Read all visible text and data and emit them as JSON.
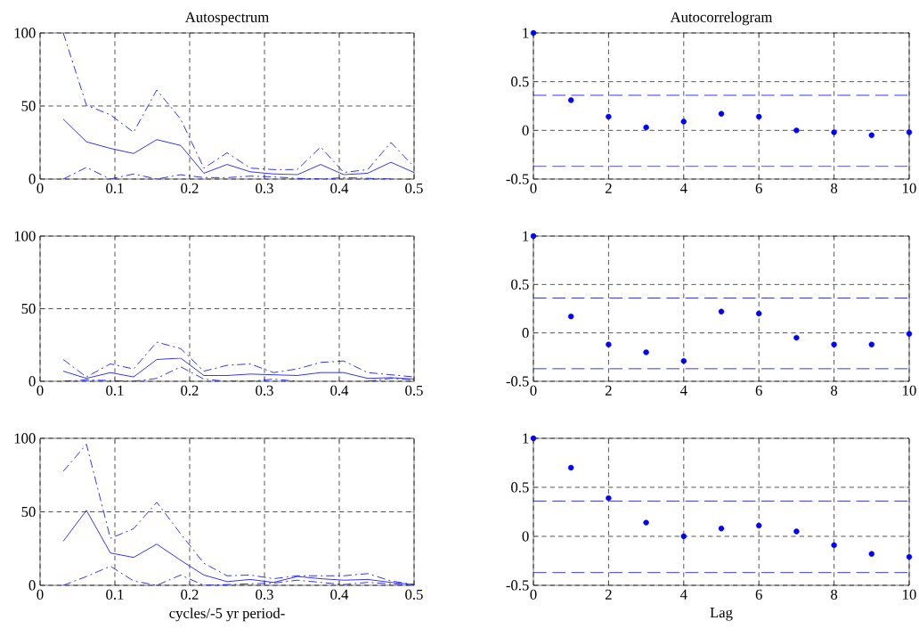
{
  "chart_data": [
    {
      "type": "line",
      "title": "Autospectrum",
      "x": [
        0.031,
        0.062,
        0.094,
        0.125,
        0.156,
        0.188,
        0.219,
        0.25,
        0.281,
        0.312,
        0.344,
        0.375,
        0.406,
        0.438,
        0.469,
        0.5
      ],
      "xlim": [
        0,
        0.5
      ],
      "ylim": [
        0,
        100
      ],
      "xticks": [
        0,
        0.1,
        0.2,
        0.3,
        0.4,
        0.5
      ],
      "yticks": [
        0,
        50,
        100
      ],
      "grid": true,
      "series": [
        {
          "color": "#0000ff",
          "line_style": "solid",
          "values": [
            41,
            25.5,
            21,
            17.5,
            27,
            23,
            4,
            10,
            5,
            3.5,
            3,
            10,
            3,
            4,
            11.5,
            4.5
          ]
        },
        {
          "color": "#0000ff",
          "line_style": "dashed",
          "values": [
            100,
            50.5,
            44,
            32,
            61,
            41,
            7.5,
            18,
            7.5,
            6.5,
            6.5,
            22,
            4.5,
            6.5,
            25,
            8.5
          ]
        },
        {
          "color": "#0000ff",
          "line_style": "dashed",
          "values": [
            0,
            8,
            0,
            3.5,
            0,
            3,
            1,
            1,
            2,
            1.5,
            0.5,
            0,
            1,
            0.5,
            0,
            null
          ]
        }
      ]
    },
    {
      "type": "scatter",
      "title": "Autocorrelogram",
      "x": [
        0,
        1,
        2,
        3,
        4,
        5,
        6,
        7,
        8,
        9,
        10
      ],
      "xlim": [
        0,
        10
      ],
      "ylim": [
        -0.5,
        1
      ],
      "xticks": [
        0,
        2,
        4,
        6,
        8,
        10
      ],
      "yticks": [
        -0.5,
        0,
        0.5,
        1
      ],
      "grid": true,
      "marker": "circle",
      "series": [
        {
          "color": "#0000ff",
          "values": [
            1,
            0.31,
            0.14,
            0.03,
            0.09,
            0.17,
            0.14,
            0.0,
            -0.02,
            -0.05,
            -0.02
          ]
        }
      ],
      "ref_lines": [
        {
          "axis": "y",
          "value": 0.36,
          "color": "#0000ff",
          "line_style": "dashed"
        },
        {
          "axis": "y",
          "value": -0.37,
          "color": "#0000ff",
          "line_style": "dashed"
        }
      ]
    },
    {
      "type": "line",
      "x": [
        0.031,
        0.062,
        0.094,
        0.125,
        0.156,
        0.188,
        0.219,
        0.25,
        0.281,
        0.312,
        0.344,
        0.375,
        0.406,
        0.438,
        0.469,
        0.5
      ],
      "xlim": [
        0,
        0.5
      ],
      "ylim": [
        0,
        100
      ],
      "xticks": [
        0,
        0.1,
        0.2,
        0.3,
        0.4,
        0.5
      ],
      "yticks": [
        0,
        50,
        100
      ],
      "grid": true,
      "series": [
        {
          "color": "#0000ff",
          "line_style": "solid",
          "values": [
            7,
            2,
            6,
            3,
            15,
            16,
            4,
            4,
            5,
            4.5,
            4,
            6,
            6,
            2,
            2.5,
            1.5
          ]
        },
        {
          "color": "#0000ff",
          "line_style": "dashed",
          "values": [
            15,
            3,
            12,
            8.5,
            27,
            22.5,
            7,
            11,
            12,
            6,
            8.5,
            13,
            14,
            6,
            4.5,
            3
          ]
        },
        {
          "color": "#0000ff",
          "line_style": "dashed",
          "values": [
            0,
            1,
            0.5,
            0,
            2,
            10,
            1.5,
            0,
            0,
            1.5,
            0,
            null,
            null,
            0,
            2,
            1
          ]
        }
      ]
    },
    {
      "type": "scatter",
      "x": [
        0,
        1,
        2,
        3,
        4,
        5,
        6,
        7,
        8,
        9,
        10
      ],
      "xlim": [
        0,
        10
      ],
      "ylim": [
        -0.5,
        1
      ],
      "xticks": [
        0,
        2,
        4,
        6,
        8,
        10
      ],
      "yticks": [
        -0.5,
        0,
        0.5,
        1
      ],
      "grid": true,
      "marker": "circle",
      "series": [
        {
          "color": "#0000ff",
          "values": [
            1,
            0.17,
            -0.12,
            -0.2,
            -0.29,
            0.22,
            0.2,
            -0.05,
            -0.12,
            -0.12,
            -0.01
          ]
        }
      ],
      "ref_lines": [
        {
          "axis": "y",
          "value": 0.36,
          "color": "#0000ff",
          "line_style": "dashed"
        },
        {
          "axis": "y",
          "value": -0.37,
          "color": "#0000ff",
          "line_style": "dashed"
        }
      ]
    },
    {
      "type": "line",
      "xlabel": "cycles/-5 yr period-",
      "x": [
        0.031,
        0.062,
        0.094,
        0.125,
        0.156,
        0.188,
        0.219,
        0.25,
        0.281,
        0.312,
        0.344,
        0.375,
        0.406,
        0.438,
        0.469,
        0.5
      ],
      "xlim": [
        0,
        0.5
      ],
      "ylim": [
        0,
        100
      ],
      "xticks": [
        0,
        0.1,
        0.2,
        0.3,
        0.4,
        0.5
      ],
      "yticks": [
        0,
        50,
        100
      ],
      "grid": true,
      "series": [
        {
          "color": "#0000ff",
          "line_style": "solid",
          "values": [
            30,
            51,
            22,
            19,
            28,
            17,
            7,
            2.5,
            4,
            2,
            6,
            4.5,
            3.5,
            4,
            2,
            0.5
          ]
        },
        {
          "color": "#0000ff",
          "line_style": "dashed",
          "values": [
            77.5,
            96,
            32,
            38.5,
            56.5,
            35,
            15,
            6.5,
            7,
            4.5,
            6.5,
            6.5,
            6.5,
            8,
            3,
            0.5
          ]
        },
        {
          "color": "#0000ff",
          "line_style": "dashed",
          "values": [
            0,
            6,
            13,
            3,
            0,
            7,
            0,
            0.5,
            1,
            1.5,
            3.5,
            2,
            0.5,
            2,
            1,
            0
          ]
        }
      ]
    },
    {
      "type": "scatter",
      "xlabel": "Lag",
      "x": [
        0,
        1,
        2,
        3,
        4,
        5,
        6,
        7,
        8,
        9,
        10
      ],
      "xlim": [
        0,
        10
      ],
      "ylim": [
        -0.5,
        1
      ],
      "xticks": [
        0,
        2,
        4,
        6,
        8,
        10
      ],
      "yticks": [
        -0.5,
        0,
        0.5,
        1
      ],
      "grid": true,
      "marker": "circle",
      "series": [
        {
          "color": "#0000ff",
          "values": [
            1,
            0.7,
            0.39,
            0.14,
            0,
            0.08,
            0.11,
            0.05,
            -0.09,
            -0.18,
            -0.21
          ]
        }
      ],
      "ref_lines": [
        {
          "axis": "y",
          "value": 0.36,
          "color": "#0000ff",
          "line_style": "dashed"
        },
        {
          "axis": "y",
          "value": -0.37,
          "color": "#0000ff",
          "line_style": "dashed"
        }
      ]
    }
  ]
}
